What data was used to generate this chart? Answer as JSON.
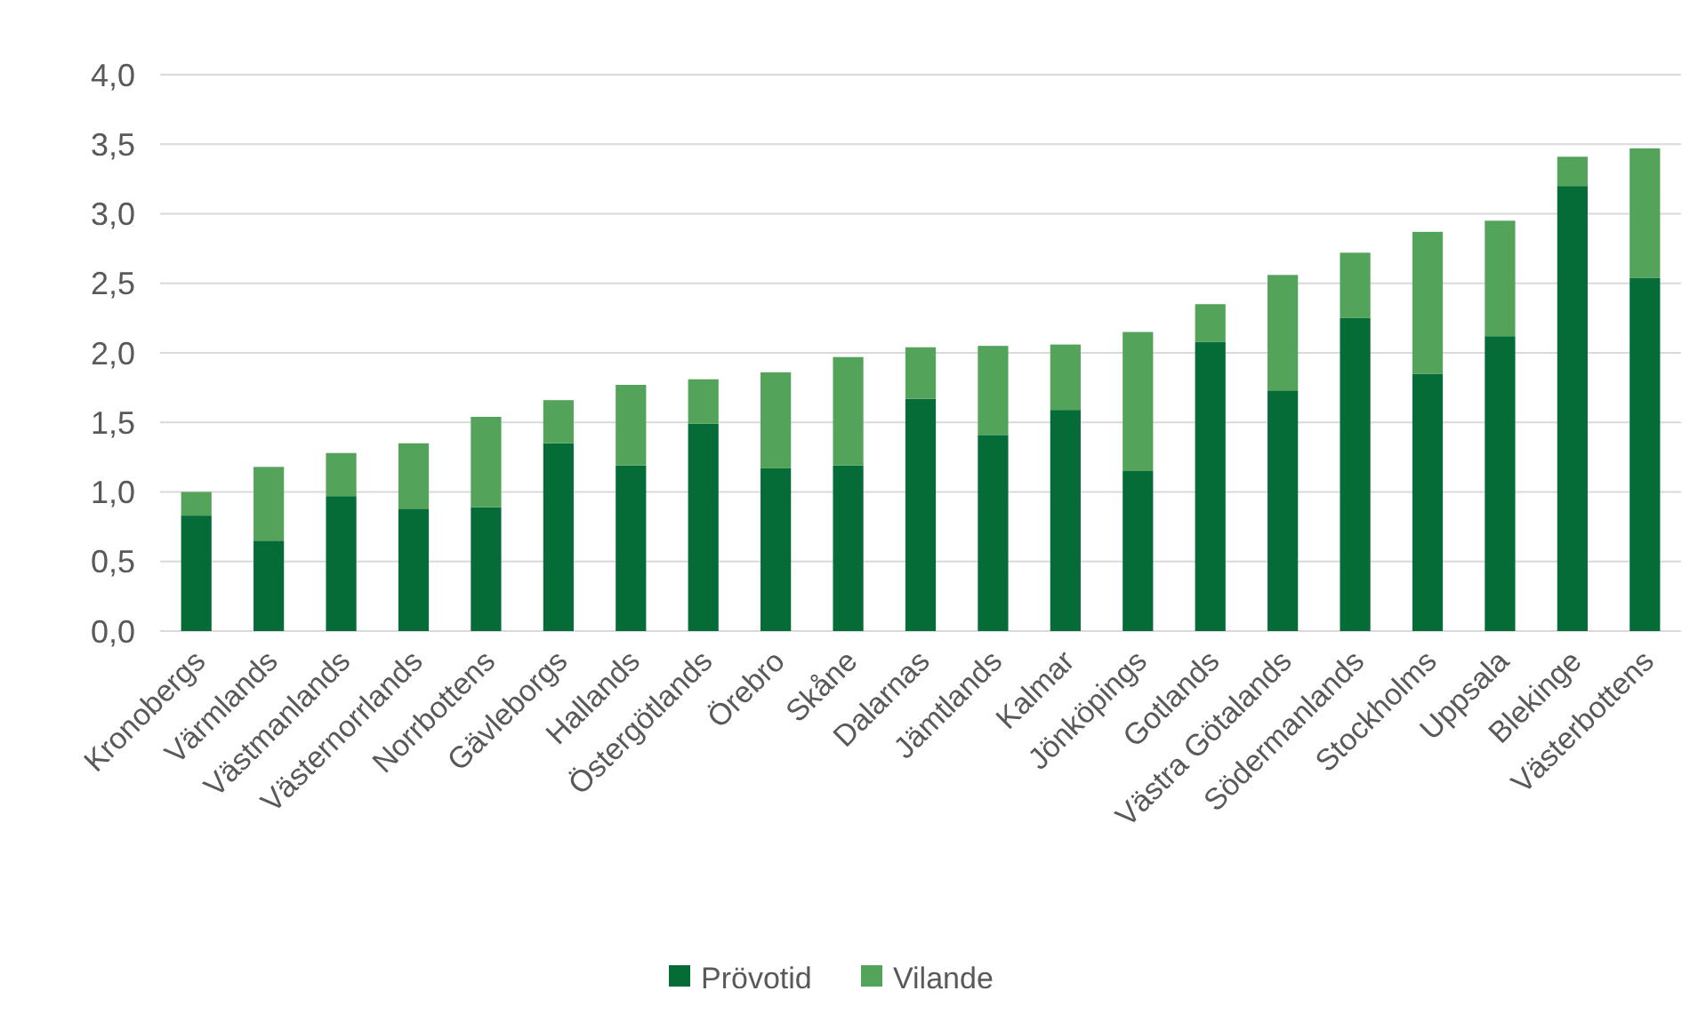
{
  "chart_data": {
    "type": "bar",
    "stacked": true,
    "categories": [
      "Kronobergs",
      "Värmlands",
      "Västmanlands",
      "Västernorrlands",
      "Norrbottens",
      "Gävleborgs",
      "Hallands",
      "Östergötlands",
      "Örebro",
      "Skåne",
      "Dalarnas",
      "Jämtlands",
      "Kalmar",
      "Jönköpings",
      "Gotlands",
      "Västra Götalands",
      "Södermanlands",
      "Stockholms",
      "Uppsala",
      "Blekinge",
      "Västerbottens"
    ],
    "series": [
      {
        "name": "Prövotid",
        "color": "#056c38",
        "values": [
          0.83,
          0.65,
          0.97,
          0.88,
          0.89,
          1.35,
          1.19,
          1.49,
          1.17,
          1.19,
          1.67,
          1.41,
          1.59,
          1.15,
          2.08,
          1.73,
          2.25,
          1.85,
          2.12,
          3.2,
          2.54
        ]
      },
      {
        "name": "Vilande",
        "color": "#53a35a",
        "values": [
          0.17,
          0.53,
          0.31,
          0.47,
          0.65,
          0.31,
          0.58,
          0.32,
          0.69,
          0.78,
          0.37,
          0.64,
          0.47,
          1.0,
          0.27,
          0.83,
          0.47,
          1.02,
          0.83,
          0.21,
          0.93
        ]
      }
    ],
    "ylim": [
      0,
      4
    ],
    "yticks": [
      {
        "value": 0,
        "label": "0,0"
      },
      {
        "value": 0.5,
        "label": "0,5"
      },
      {
        "value": 1,
        "label": "1,0"
      },
      {
        "value": 1.5,
        "label": "1,5"
      },
      {
        "value": 2,
        "label": "2,0"
      },
      {
        "value": 2.5,
        "label": "2,5"
      },
      {
        "value": 3,
        "label": "3,0"
      },
      {
        "value": 3.5,
        "label": "3,5"
      },
      {
        "value": 4,
        "label": "4,0"
      }
    ],
    "grid": "y",
    "legend": "bottom"
  }
}
